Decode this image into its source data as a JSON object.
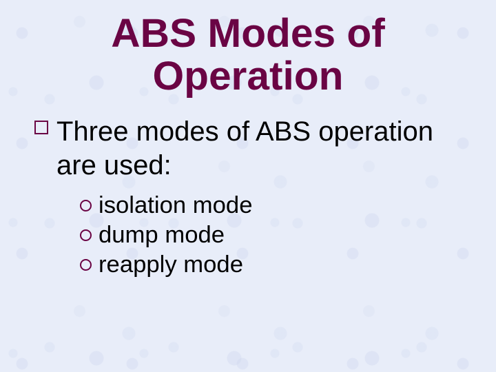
{
  "slide": {
    "background_color": "#e8edf9",
    "texture_tint": "#c8d2eb",
    "title": {
      "line1": "ABS Modes of",
      "line2": "Operation",
      "color": "#6a0444",
      "font_size_pt": 44,
      "font_weight": "bold"
    },
    "body": {
      "text_color": "#000000",
      "bullet_color": "#6a0444",
      "level1": {
        "text": "Three modes of ABS operation are used:",
        "font_size_pt": 30,
        "bullet_shape": "hollow-square"
      },
      "level2": {
        "font_size_pt": 26,
        "bullet_shape": "hollow-circle",
        "items": [
          "isolation mode",
          "dump mode",
          "reapply mode"
        ]
      }
    }
  }
}
